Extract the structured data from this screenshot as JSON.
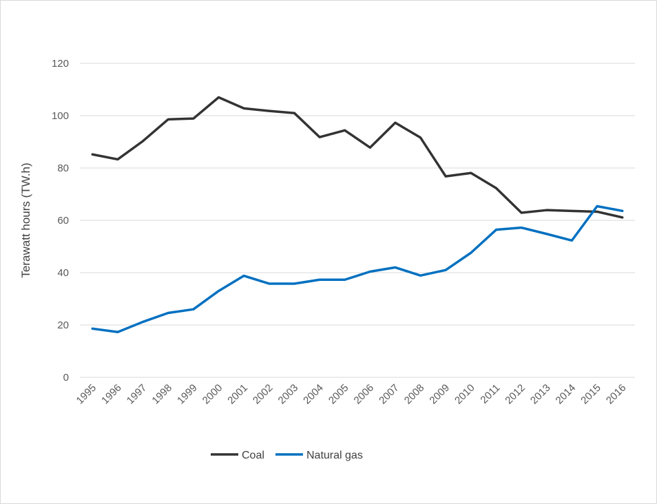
{
  "chart_data": {
    "type": "line",
    "title": "",
    "xlabel": "",
    "ylabel": "Terawatt hours (TW.h)",
    "ylim": [
      0,
      120
    ],
    "yticks": [
      0,
      20,
      40,
      60,
      80,
      100,
      120
    ],
    "grid": true,
    "legend_position": "bottom",
    "categories": [
      "1995",
      "1996",
      "1997",
      "1998",
      "1999",
      "2000",
      "2001",
      "2002",
      "2003",
      "2004",
      "2005",
      "2006",
      "2007",
      "2008",
      "2009",
      "2010",
      "2011",
      "2012",
      "2013",
      "2014",
      "2015",
      "2016"
    ],
    "series": [
      {
        "name": "Coal",
        "color": "#333333",
        "values": [
          85.2,
          83.3,
          90.3,
          98.6,
          98.9,
          107.0,
          102.8,
          101.8,
          101.0,
          91.8,
          94.4,
          87.8,
          97.3,
          91.6,
          76.8,
          78.1,
          72.3,
          62.9,
          63.9,
          63.6,
          63.3,
          61.1
        ]
      },
      {
        "name": "Natural gas",
        "color": "#0070c0",
        "values": [
          18.6,
          17.3,
          21.2,
          24.6,
          26.0,
          33.0,
          38.8,
          35.8,
          35.8,
          37.3,
          37.3,
          40.4,
          42.0,
          38.9,
          41.0,
          47.6,
          56.4,
          57.2,
          54.8,
          52.3,
          65.4,
          63.6
        ]
      }
    ]
  }
}
